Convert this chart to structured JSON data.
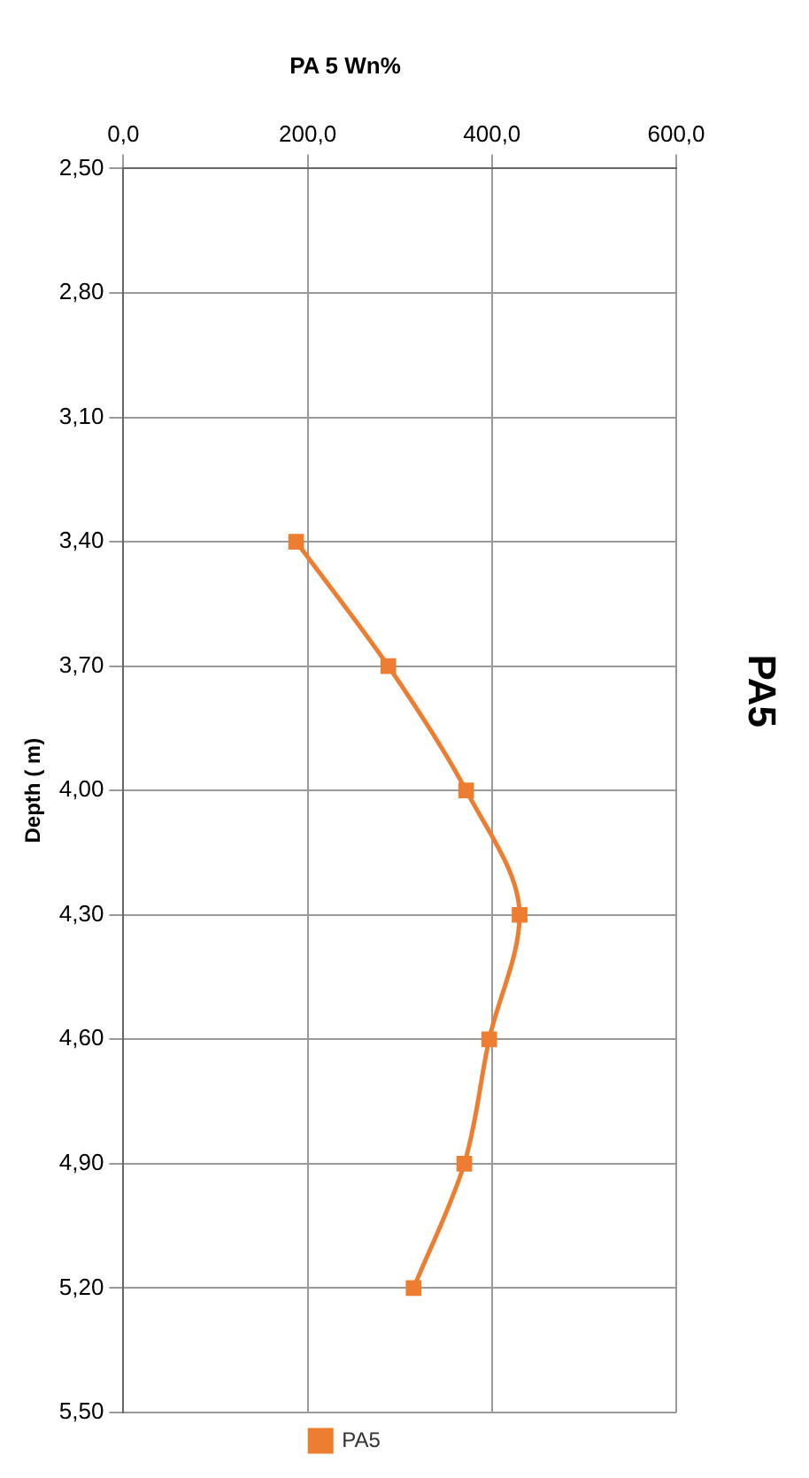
{
  "chart_data": {
    "type": "line",
    "title": "PA 5 Wn%",
    "ylabel": "Depth ( m)",
    "annotations": [
      "PA5"
    ],
    "x": [
      187.5,
      287.5,
      372,
      430,
      397,
      370,
      315
    ],
    "series": [
      {
        "name": "PA5",
        "color": "#ed7d31",
        "values": [
          3.4,
          3.7,
          4.0,
          4.3,
          4.6,
          4.9,
          5.2
        ]
      }
    ],
    "xlim": [
      0,
      600
    ],
    "xticks": [
      {
        "value": 0,
        "label": "0,0"
      },
      {
        "value": 200,
        "label": "200,0"
      },
      {
        "value": 400,
        "label": "400,0"
      },
      {
        "value": 600,
        "label": "600,0"
      }
    ],
    "ylim": [
      5.5,
      2.5
    ],
    "yticks": [
      {
        "value": 2.5,
        "label": "2,50"
      },
      {
        "value": 2.8,
        "label": "2,80"
      },
      {
        "value": 3.1,
        "label": "3,10"
      },
      {
        "value": 3.4,
        "label": "3,40"
      },
      {
        "value": 3.7,
        "label": "3,70"
      },
      {
        "value": 4.0,
        "label": "4,00"
      },
      {
        "value": 4.3,
        "label": "4,30"
      },
      {
        "value": 4.6,
        "label": "4,60"
      },
      {
        "value": 4.9,
        "label": "4,90"
      },
      {
        "value": 5.2,
        "label": "5,20"
      },
      {
        "value": 5.5,
        "label": "5,50"
      }
    ],
    "grid": true,
    "legend": "bottom",
    "marker": "square",
    "line_style": "solid"
  }
}
